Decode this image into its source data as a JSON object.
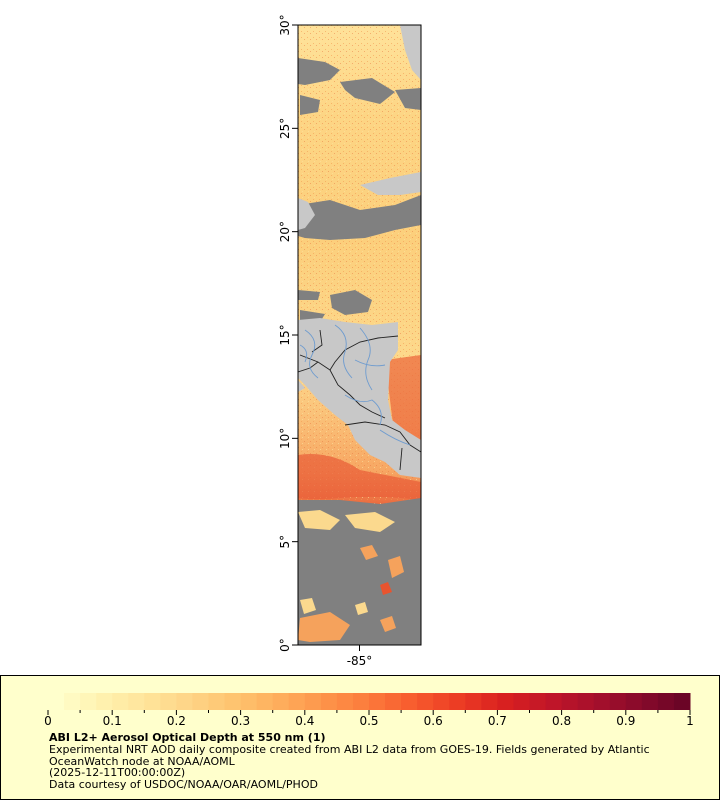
{
  "map": {
    "lat_ticks": [
      {
        "value": 0,
        "label": "0°"
      },
      {
        "value": 5,
        "label": "5°"
      },
      {
        "value": 10,
        "label": "10°"
      },
      {
        "value": 15,
        "label": "15°"
      },
      {
        "value": 20,
        "label": "20°"
      },
      {
        "value": 25,
        "label": "25°"
      },
      {
        "value": 30,
        "label": "30°"
      }
    ],
    "lon_ticks": [
      {
        "value": -85,
        "label": "-85°"
      }
    ],
    "lat_range": [
      0,
      30
    ],
    "lon_range": [
      -88,
      -82
    ],
    "colors": {
      "land": "#c8c8c8",
      "no_data": "#808080",
      "border": "#222222",
      "river": "#6f9ccf",
      "aod_low": "#ffe9a8",
      "aod_mid": "#fbb663",
      "aod_high": "#e8452a"
    }
  },
  "legend": {
    "colorbar": {
      "min": 0,
      "max": 1,
      "labels": [
        "0",
        "0.1",
        "0.2",
        "0.3",
        "0.4",
        "0.5",
        "0.6",
        "0.7",
        "0.8",
        "0.9",
        "1"
      ],
      "colors": [
        "#ffffcc",
        "#fff2b0",
        "#ffe49a",
        "#fed486",
        "#fec36f",
        "#feae5c",
        "#fd944a",
        "#fc7a3b",
        "#f75b2e",
        "#ec3c24",
        "#d92120",
        "#c21628",
        "#a8102c",
        "#8a0b2b",
        "#6b0526"
      ]
    },
    "title": "ABI L2+ Aerosol Optical Depth at 550 nm (1)",
    "description": "Experimental NRT AOD daily composite created from ABI L2 data from GOES-19. Fields generated by Atlantic OceanWatch node at NOAA/AOML",
    "time": "(2025-12-11T00:00:00Z)",
    "credit": "Data courtesy of USDOC/NOAA/OAR/AOML/PHOD"
  }
}
